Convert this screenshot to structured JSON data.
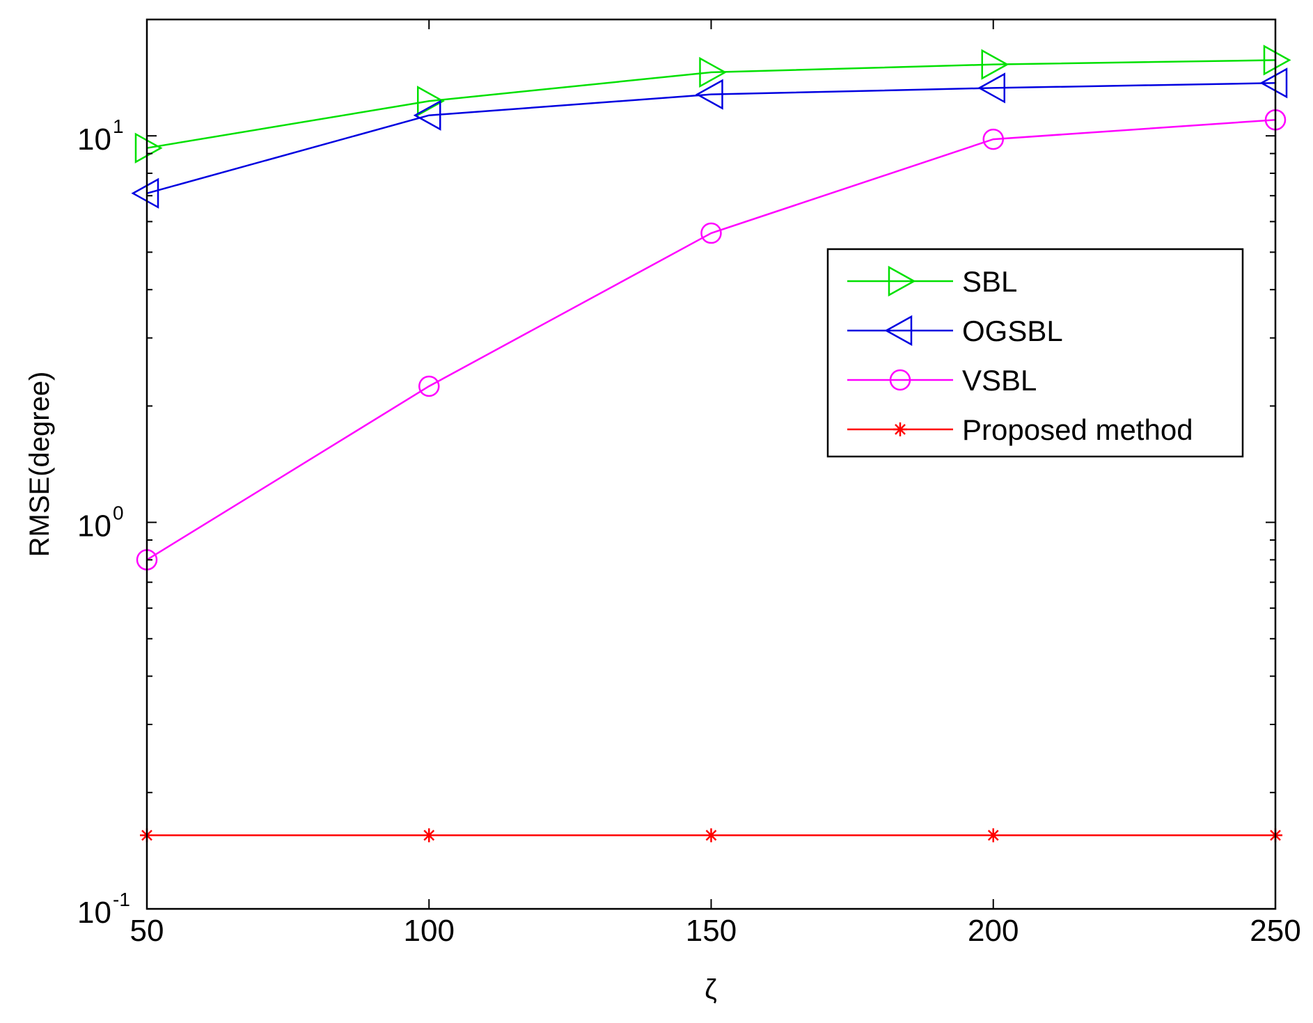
{
  "chart_data": {
    "type": "line",
    "title": "",
    "xlabel": "ζ",
    "ylabel": "RMSE(degree)",
    "xlim": [
      50,
      250
    ],
    "ylim": [
      0.1,
      20
    ],
    "yscale": "log",
    "grid": false,
    "legend_position": "top-right",
    "x": [
      50,
      100,
      150,
      200,
      250
    ],
    "x_ticks": [
      "50",
      "100",
      "150",
      "200",
      "250"
    ],
    "y_ticks": [
      {
        "base": "10",
        "exp": "-1",
        "value": 0.1
      },
      {
        "base": "10",
        "exp": "0",
        "value": 1
      },
      {
        "base": "10",
        "exp": "1",
        "value": 10
      }
    ],
    "series": [
      {
        "name": "SBL",
        "color": "#00e000",
        "marker": "triangle-right",
        "values": [
          9.3,
          12.3,
          14.6,
          15.3,
          15.7
        ]
      },
      {
        "name": "OGSBL",
        "color": "#0000e0",
        "marker": "triangle-left",
        "values": [
          7.1,
          11.3,
          12.8,
          13.3,
          13.7
        ]
      },
      {
        "name": "VSBL",
        "color": "#ff00ff",
        "marker": "circle",
        "values": [
          0.8,
          2.25,
          5.6,
          9.8,
          11.0
        ]
      },
      {
        "name": "Proposed method",
        "color": "#ff0000",
        "marker": "asterisk",
        "values": [
          0.155,
          0.155,
          0.155,
          0.155,
          0.155
        ]
      }
    ]
  }
}
